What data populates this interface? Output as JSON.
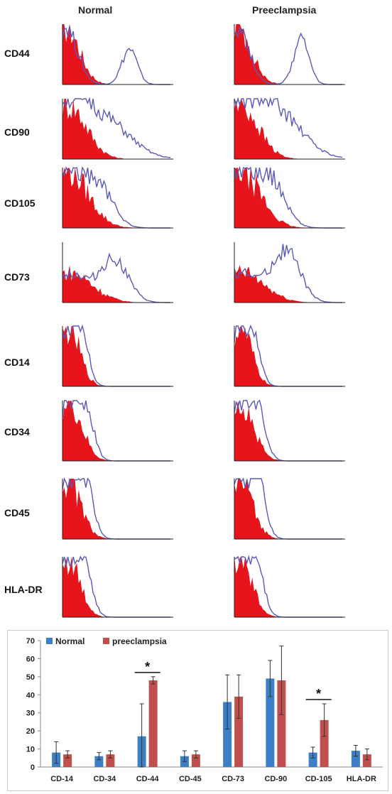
{
  "figure": {
    "columns": [
      "Normal",
      "Preeclampsia"
    ],
    "rows": [
      "CD44",
      "CD90",
      "CD105",
      "CD73",
      "CD14",
      "CD34",
      "CD45",
      "HLA-DR"
    ],
    "colors": {
      "isotype": "#e8141b",
      "marker": "#5a5ab8",
      "axis": "#222222"
    }
  },
  "chart_data": {
    "type": "bar",
    "categories": [
      "CD-14",
      "CD-34",
      "CD-44",
      "CD-45",
      "CD-73",
      "CD-90",
      "CD-105",
      "HLA-DR"
    ],
    "series": [
      {
        "name": "Normal",
        "color": "#3d7fc4",
        "values": [
          8,
          6,
          17,
          6,
          36,
          49,
          8,
          9
        ],
        "errors": [
          6,
          2,
          18,
          3,
          15,
          10,
          3,
          3
        ]
      },
      {
        "name": "preeclampsia",
        "color": "#c0504d",
        "values": [
          7,
          7,
          48,
          7,
          39,
          48,
          26,
          7
        ],
        "errors": [
          2,
          2,
          2,
          2,
          12,
          19,
          9,
          3
        ]
      }
    ],
    "significance": [
      {
        "category": "CD-44",
        "label": "*"
      },
      {
        "category": "CD-105",
        "label": "*"
      }
    ],
    "ylim": [
      0,
      70
    ],
    "yticks": [
      0,
      10,
      20,
      30,
      40,
      50,
      60,
      70
    ],
    "legend": "top-left",
    "grid": false
  }
}
